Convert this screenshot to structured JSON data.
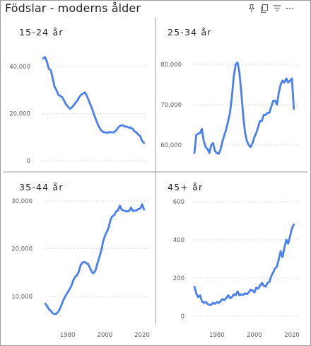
{
  "title": "Födslar - moderns ålder",
  "toolbar": [
    {
      "icon": "pin-icon"
    },
    {
      "icon": "copy-visual-icon"
    },
    {
      "icon": "filter-icon"
    },
    {
      "icon": "more-options-icon"
    }
  ],
  "colors": {
    "series": "#4a7ff0",
    "grid": "#d0d0d0",
    "divider": "#9a9a9a",
    "axis_text": "#605e5c"
  },
  "chart_data": [
    {
      "type": "line",
      "title": "15-24 år",
      "xlim": [
        1968,
        2023
      ],
      "ylim": [
        0,
        46000
      ],
      "y_ticks": [
        0,
        20000,
        40000
      ],
      "y_tick_labels": [
        "0",
        "20,000",
        "40,000"
      ],
      "x": [
        1968,
        1969,
        1970,
        1971,
        1972,
        1973,
        1974,
        1975,
        1976,
        1977,
        1978,
        1979,
        1980,
        1981,
        1982,
        1983,
        1984,
        1985,
        1986,
        1987,
        1988,
        1989,
        1990,
        1991,
        1992,
        1993,
        1994,
        1995,
        1996,
        1997,
        1998,
        1999,
        2000,
        2001,
        2002,
        2003,
        2004,
        2005,
        2006,
        2007,
        2008,
        2009,
        2010,
        2011,
        2012,
        2013,
        2014,
        2015,
        2016,
        2017,
        2018,
        2019,
        2020,
        2021
      ],
      "y": [
        43500,
        44000,
        42000,
        39000,
        38500,
        35000,
        31500,
        30000,
        28000,
        27500,
        27000,
        25500,
        24000,
        23000,
        22000,
        22500,
        23500,
        24500,
        25500,
        27000,
        28000,
        28500,
        29000,
        27500,
        25500,
        23500,
        21500,
        19000,
        17000,
        15000,
        13500,
        12500,
        12000,
        12000,
        11800,
        12200,
        12000,
        12000,
        12500,
        13500,
        14500,
        15000,
        15000,
        14500,
        14500,
        14000,
        14000,
        13500,
        12500,
        12000,
        11000,
        10500,
        8500,
        7500
      ]
    },
    {
      "type": "line",
      "title": "25-34 år",
      "xlim": [
        1968,
        2023
      ],
      "ylim": [
        55500,
        83000
      ],
      "y_ticks": [
        60000,
        70000,
        80000
      ],
      "y_tick_labels": [
        "60,000",
        "70,000",
        "80,000"
      ],
      "x": [
        1968,
        1969,
        1970,
        1971,
        1972,
        1973,
        1974,
        1975,
        1976,
        1977,
        1978,
        1979,
        1980,
        1981,
        1982,
        1983,
        1984,
        1985,
        1986,
        1987,
        1988,
        1989,
        1990,
        1991,
        1992,
        1993,
        1994,
        1995,
        1996,
        1997,
        1998,
        1999,
        2000,
        2001,
        2002,
        2003,
        2004,
        2005,
        2006,
        2007,
        2008,
        2009,
        2010,
        2011,
        2012,
        2013,
        2014,
        2015,
        2016,
        2017,
        2018,
        2019,
        2020,
        2021
      ],
      "y": [
        58000,
        62500,
        62800,
        63000,
        64000,
        61000,
        59500,
        59000,
        58000,
        60000,
        60500,
        58500,
        58000,
        57800,
        59000,
        61000,
        62500,
        64000,
        66000,
        68000,
        72000,
        77000,
        80000,
        80500,
        78000,
        73000,
        67500,
        63000,
        61000,
        60000,
        59500,
        60500,
        62000,
        63000,
        64500,
        66000,
        66000,
        67500,
        67500,
        68000,
        68000,
        69500,
        71000,
        71000,
        70000,
        73000,
        75000,
        76000,
        75500,
        76500,
        75500,
        76000,
        76500,
        69000
      ]
    },
    {
      "type": "line",
      "title": "35-44 år",
      "xlim": [
        1968,
        2023
      ],
      "ylim": [
        4800,
        31000
      ],
      "y_ticks": [
        10000,
        20000,
        30000
      ],
      "y_tick_labels": [
        "10,000",
        "20,000",
        "30,000"
      ],
      "x": [
        1968,
        1969,
        1970,
        1971,
        1972,
        1973,
        1974,
        1975,
        1976,
        1977,
        1978,
        1979,
        1980,
        1981,
        1982,
        1983,
        1984,
        1985,
        1986,
        1987,
        1988,
        1989,
        1990,
        1991,
        1992,
        1993,
        1994,
        1995,
        1996,
        1997,
        1998,
        1999,
        2000,
        2001,
        2002,
        2003,
        2004,
        2005,
        2006,
        2007,
        2008,
        2009,
        2010,
        2011,
        2012,
        2013,
        2014,
        2015,
        2016,
        2017,
        2018,
        2019,
        2020,
        2021
      ],
      "y": [
        8500,
        8000,
        7300,
        7000,
        6500,
        6300,
        6400,
        6800,
        7500,
        8500,
        9500,
        10200,
        10800,
        11500,
        12200,
        13300,
        14100,
        14400,
        15200,
        16600,
        17100,
        17200,
        17000,
        16800,
        16000,
        15100,
        14900,
        15500,
        16900,
        18200,
        19500,
        21400,
        22700,
        23500,
        24400,
        26000,
        26800,
        27000,
        27800,
        28000,
        29000,
        28200,
        28000,
        27900,
        27800,
        27900,
        28600,
        27900,
        28000,
        28000,
        28300,
        28400,
        29300,
        28200
      ]
    },
    {
      "type": "line",
      "title": "45+ år",
      "xlim": [
        1968,
        2023
      ],
      "ylim": [
        0,
        640
      ],
      "y_ticks": [
        0,
        200,
        400,
        600
      ],
      "y_tick_labels": [
        "0",
        "200",
        "400",
        "600"
      ],
      "x_ticks": [
        1980,
        2000,
        2020
      ],
      "x_tick_labels": [
        "1980",
        "2000",
        "2020"
      ],
      "x": [
        1968,
        1969,
        1970,
        1971,
        1972,
        1973,
        1974,
        1975,
        1976,
        1977,
        1978,
        1979,
        1980,
        1981,
        1982,
        1983,
        1984,
        1985,
        1986,
        1987,
        1988,
        1989,
        1990,
        1991,
        1992,
        1993,
        1994,
        1995,
        1996,
        1997,
        1998,
        1999,
        2000,
        2001,
        2002,
        2003,
        2004,
        2005,
        2006,
        2007,
        2008,
        2009,
        2010,
        2011,
        2012,
        2013,
        2014,
        2015,
        2016,
        2017,
        2018,
        2019,
        2020,
        2021
      ],
      "y": [
        155,
        120,
        100,
        110,
        80,
        70,
        75,
        65,
        60,
        60,
        70,
        65,
        75,
        70,
        80,
        90,
        85,
        95,
        110,
        95,
        100,
        115,
        110,
        130,
        110,
        115,
        112,
        120,
        115,
        125,
        140,
        135,
        125,
        150,
        145,
        160,
        175,
        160,
        155,
        175,
        180,
        210,
        230,
        250,
        260,
        300,
        340,
        310,
        360,
        400,
        380,
        420,
        460,
        480
      ]
    }
  ]
}
